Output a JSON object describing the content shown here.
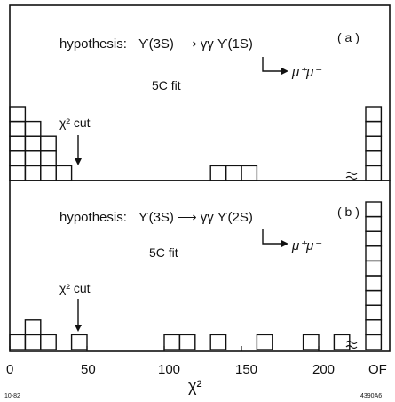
{
  "chart_data": {
    "type": "bar",
    "xlabel": "χ²",
    "x_ticks": [
      "0",
      "50",
      "100",
      "150",
      "200",
      "OF"
    ],
    "xlim": [
      0,
      230
    ],
    "bin_width": 10,
    "overflow_label": "OF",
    "footer_left": "10-82",
    "footer_right": "4390A6",
    "panels": [
      {
        "panel_label": "( a )",
        "hypothesis_prefix": "hypothesis:",
        "hypothesis_reaction": "ϒ(3S) ⟶ γγ ϒ(1S)",
        "decay_line": "μ⁺μ⁻",
        "fit_label": "5C fit",
        "cut_label": "χ² cut",
        "cut_value": 50,
        "bins": [
          {
            "x": 0,
            "count": 5
          },
          {
            "x": 10,
            "count": 4
          },
          {
            "x": 20,
            "count": 3
          },
          {
            "x": 30,
            "count": 1
          },
          {
            "x": 130,
            "count": 1
          },
          {
            "x": 140,
            "count": 1
          },
          {
            "x": 150,
            "count": 1
          }
        ],
        "overflow_count": 5
      },
      {
        "panel_label": "( b )",
        "hypothesis_prefix": "hypothesis:",
        "hypothesis_reaction": "ϒ(3S) ⟶ γγ ϒ(2S)",
        "decay_line": "μ⁺μ⁻",
        "fit_label": "5C fit",
        "cut_label": "χ² cut",
        "cut_value": 50,
        "bins": [
          {
            "x": 0,
            "count": 1
          },
          {
            "x": 10,
            "count": 2
          },
          {
            "x": 20,
            "count": 1
          },
          {
            "x": 40,
            "count": 1
          },
          {
            "x": 100,
            "count": 1
          },
          {
            "x": 110,
            "count": 1
          },
          {
            "x": 130,
            "count": 1
          },
          {
            "x": 160,
            "count": 1
          },
          {
            "x": 190,
            "count": 1
          },
          {
            "x": 210,
            "count": 1
          }
        ],
        "overflow_count": 10
      }
    ]
  }
}
